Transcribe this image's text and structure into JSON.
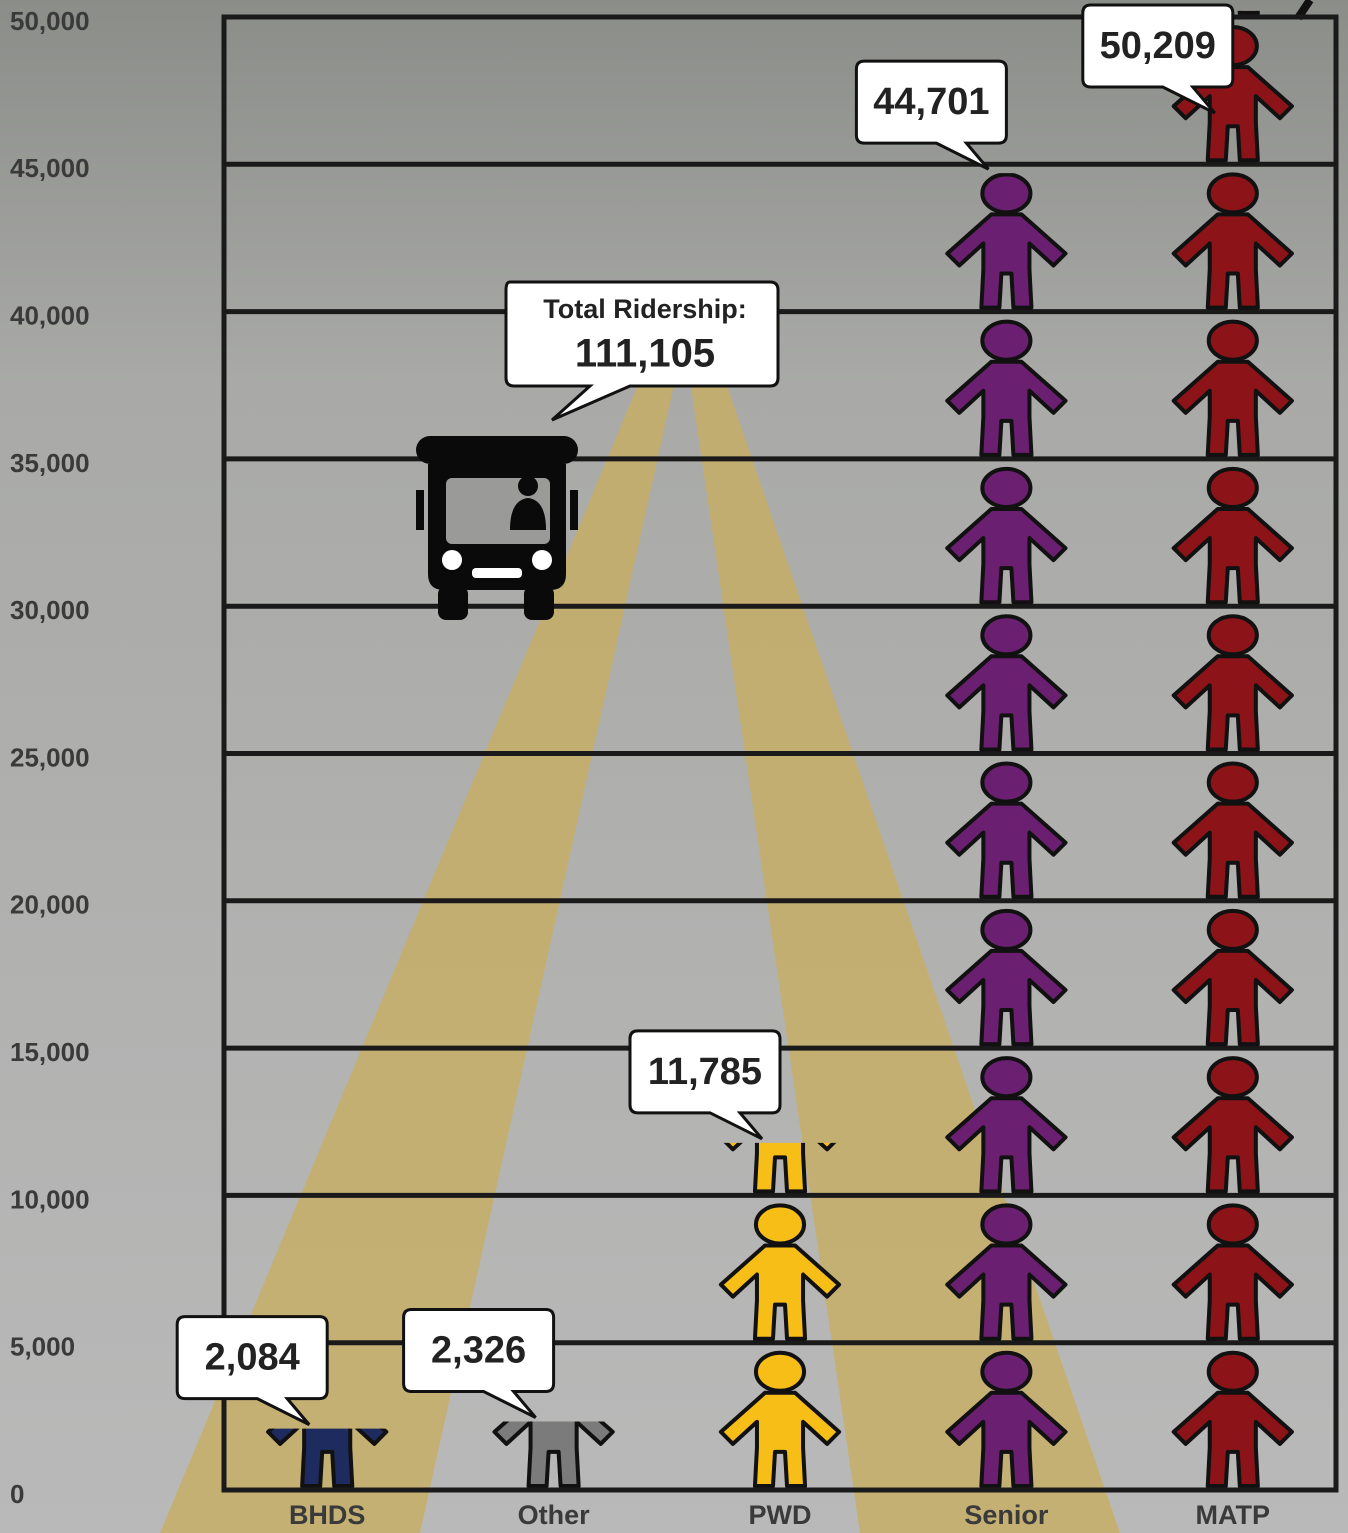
{
  "chart_data": {
    "type": "pictograph",
    "categories": [
      "BHDS",
      "Other",
      "PWD",
      "Senior",
      "MATP"
    ],
    "values": [
      2084,
      2326,
      11785,
      44701,
      50209
    ],
    "value_labels": [
      "2,084",
      "2,326",
      "11,785",
      "44,701",
      "50,209"
    ],
    "colors": [
      "#1e2b5e",
      "#7b7b7b",
      "#f6be17",
      "#6b1f70",
      "#8c1419"
    ],
    "icon_value": 5000,
    "ylim": [
      0,
      50000
    ],
    "yticks": [
      0,
      {
        "value": 5000,
        "label": "5,000"
      },
      {
        "value": 10000,
        "label": "10,000"
      },
      {
        "value": 15000,
        "label": "15,000"
      },
      {
        "value": 20000,
        "label": "20,000"
      },
      {
        "value": 25000,
        "label": "25,000"
      },
      {
        "value": 30000,
        "label": "30,000"
      },
      {
        "value": 35000,
        "label": "35,000"
      },
      {
        "value": 40000,
        "label": "40,000"
      },
      {
        "value": 45000,
        "label": "45,000"
      },
      {
        "value": 50000,
        "label": "50,000"
      }
    ],
    "grid": true,
    "annotation_title": "Total Ridership:",
    "annotation_value": "111,105"
  }
}
